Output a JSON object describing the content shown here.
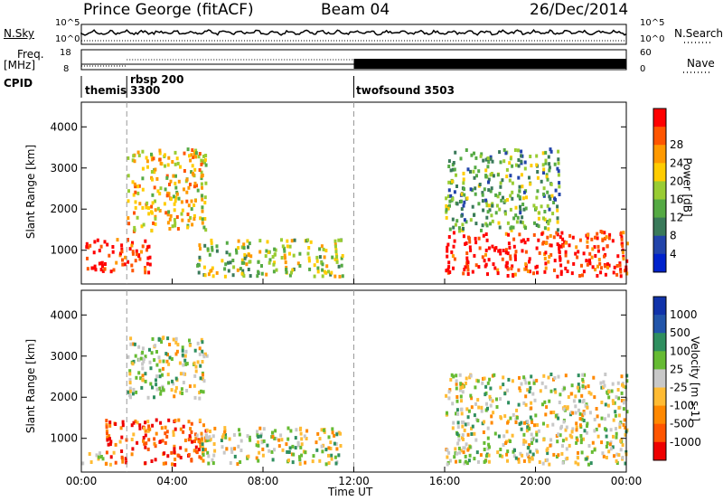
{
  "header": {
    "station": "Prince George (fitACF)",
    "beam": "Beam 04",
    "date": "26/Dec/2014"
  },
  "top_panels": {
    "nsky_label": "N.Sky",
    "nsky_ticks": [
      "10^5",
      "10^0"
    ],
    "nsearch_label": "N.Search",
    "nsearch_ticks": [
      "10^5",
      "10^0"
    ],
    "freq_label": "Freq.",
    "freq_unit": "[MHz]",
    "freq_ticks": [
      "18",
      "8"
    ],
    "nave_label": "Nave",
    "nave_ticks": [
      "60",
      "0"
    ],
    "cpid_label": "CPID",
    "cpid_segments": [
      "themis",
      "rbsp 200",
      "3300",
      "twofsound 3503"
    ]
  },
  "colors": {
    "power": [
      "#0022cc",
      "#2244aa",
      "#3a7a5a",
      "#55aa44",
      "#99cc33",
      "#ffcc00",
      "#ff9900",
      "#ff5500",
      "#ff0000"
    ],
    "velocity": [
      "#ee0000",
      "#ff5500",
      "#ff8800",
      "#ffbb33",
      "#c8c8c8",
      "#66bb33",
      "#2f8f5f",
      "#2255aa",
      "#1133aa"
    ]
  },
  "chart_data": [
    {
      "type": "heatmap",
      "title": "",
      "xlabel": "",
      "ylabel": "Slant Range [km]",
      "xlim": [
        "00:00",
        "00:00"
      ],
      "ylim": [
        180,
        4600
      ],
      "x_ticks": [
        "00:00",
        "04:00",
        "08:00",
        "12:00",
        "16:00",
        "20:00",
        "00:00"
      ],
      "y_ticks": [
        1000,
        2000,
        3000,
        4000
      ],
      "colorbar": {
        "label": "Power [dB]",
        "ticks": [
          4,
          8,
          12,
          16,
          20,
          24,
          28
        ]
      },
      "regions": [
        {
          "time_range": [
            "00:00",
            "03:00"
          ],
          "range_km": [
            500,
            1300
          ],
          "power_db": 28
        },
        {
          "time_range": [
            "02:00",
            "05:30"
          ],
          "range_km": [
            1500,
            3500
          ],
          "power_db": 20
        },
        {
          "time_range": [
            "05:00",
            "11:30"
          ],
          "range_km": [
            400,
            1300
          ],
          "power_db": 16
        },
        {
          "time_range": [
            "16:00",
            "24:00"
          ],
          "range_km": [
            400,
            1500
          ],
          "power_db": 28
        },
        {
          "time_range": [
            "16:00",
            "21:00"
          ],
          "range_km": [
            1500,
            3500
          ],
          "power_db": 12
        }
      ]
    },
    {
      "type": "heatmap",
      "title": "",
      "xlabel": "Time UT",
      "ylabel": "Slant Range [km]",
      "xlim": [
        "00:00",
        "00:00"
      ],
      "ylim": [
        180,
        4600
      ],
      "x_ticks": [
        "00:00",
        "04:00",
        "08:00",
        "12:00",
        "16:00",
        "20:00",
        "00:00"
      ],
      "y_ticks": [
        1000,
        2000,
        3000,
        4000
      ],
      "colorbar": {
        "label": "Velocity [m s-1]",
        "ticks": [
          "1000",
          "500",
          "100",
          "25",
          "-25",
          "-100",
          "-500",
          "-1000"
        ]
      },
      "regions": [
        {
          "time_range": [
            "00:00",
            "01:00"
          ],
          "range_km": [
            400,
            700
          ],
          "velocity": 0
        },
        {
          "time_range": [
            "01:00",
            "05:30"
          ],
          "range_km": [
            400,
            1500
          ],
          "velocity": -500
        },
        {
          "time_range": [
            "02:00",
            "05:30"
          ],
          "range_km": [
            2000,
            3500
          ],
          "velocity": 0
        },
        {
          "time_range": [
            "05:00",
            "11:30"
          ],
          "range_km": [
            400,
            1300
          ],
          "velocity": 0
        },
        {
          "time_range": [
            "16:00",
            "24:00"
          ],
          "range_km": [
            400,
            2600
          ],
          "velocity": 0
        }
      ]
    }
  ]
}
